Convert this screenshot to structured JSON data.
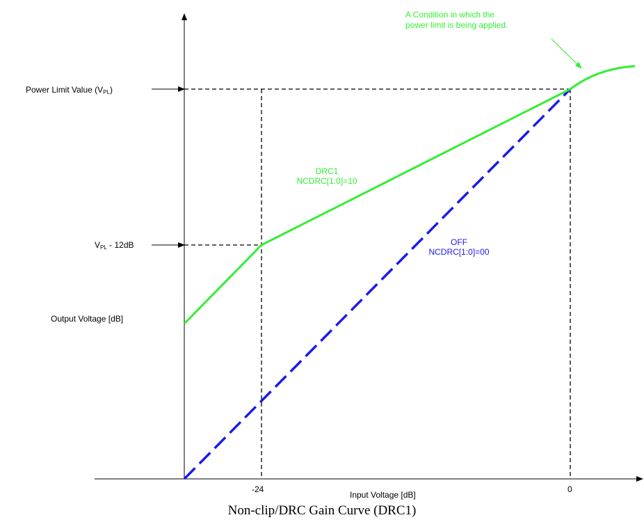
{
  "labels": {
    "power_limit_prefix": "Power Limit Value (V",
    "power_limit_sub": "PL",
    "power_limit_suffix": ")",
    "vpl12_prefix": "V",
    "vpl12_sub": "PL",
    "vpl12_suffix": " -  12dB",
    "output_voltage": "Output Voltage [dB]",
    "input_voltage": "Input Voltage [dB]",
    "tick_neg24": "-24",
    "tick_zero": "0",
    "condition_line1": "A   Condition   in   which   the",
    "condition_line2": "power limit is being applied.",
    "drc1_line1": "DRC1",
    "drc1_line2": "NCDRC[1:0]=10",
    "off_line1": "OFF",
    "off_line2": "NCDRC[1:0]=00",
    "caption": "Non-clip/DRC Gain Curve (DRC1)"
  },
  "colors": {
    "drc_curve": "#33ee33",
    "off_curve": "#1a1aee",
    "axis": "#000000"
  }
}
